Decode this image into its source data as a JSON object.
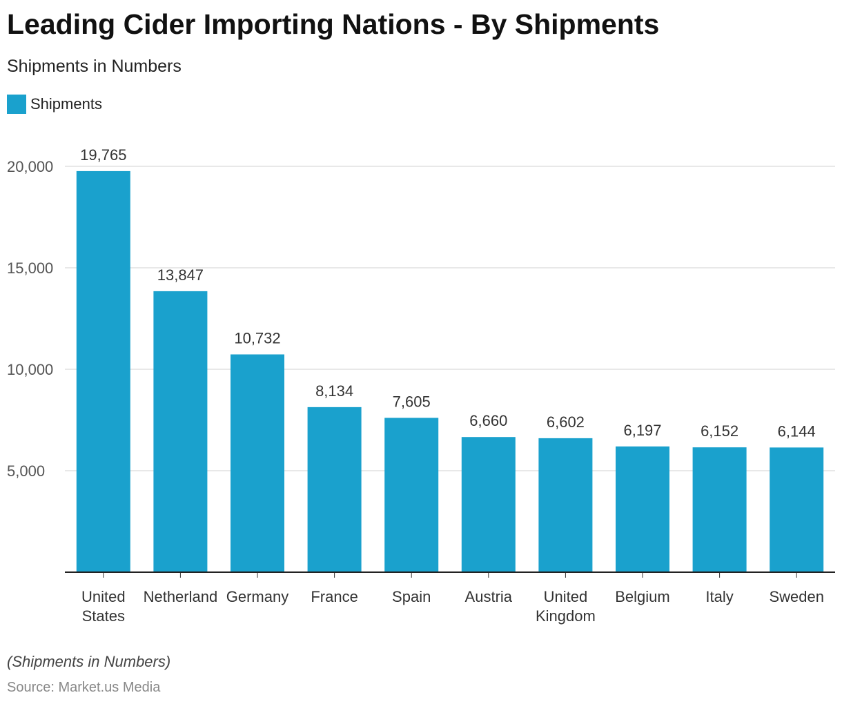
{
  "header": {
    "title": "Leading Cider Importing Nations - By Shipments",
    "subtitle": "Shipments in Numbers"
  },
  "legend": {
    "items": [
      {
        "label": "Shipments",
        "color": "#1aa1cd"
      }
    ]
  },
  "footer": {
    "note": "(Shipments in Numbers)",
    "source": "Source: Market.us Media"
  },
  "chart_data": {
    "type": "bar",
    "title": "Leading Cider Importing Nations - By Shipments",
    "subtitle": "Shipments in Numbers",
    "xlabel": "",
    "ylabel": "",
    "categories": [
      [
        "United",
        "States"
      ],
      [
        "Netherland"
      ],
      [
        "Germany"
      ],
      [
        "France"
      ],
      [
        "Spain"
      ],
      [
        "Austria"
      ],
      [
        "United",
        "Kingdom"
      ],
      [
        "Belgium"
      ],
      [
        "Italy"
      ],
      [
        "Sweden"
      ]
    ],
    "series": [
      {
        "name": "Shipments",
        "color": "#1aa1cd",
        "values": [
          19765,
          13847,
          10732,
          8134,
          7605,
          6660,
          6602,
          6197,
          6152,
          6144
        ],
        "labels": [
          "19,765",
          "13,847",
          "10,732",
          "8,134",
          "7,605",
          "6,660",
          "6,602",
          "6,197",
          "6,152",
          "6,144"
        ]
      }
    ],
    "ylim": [
      0,
      20000
    ],
    "yticks": [
      5000,
      10000,
      15000,
      20000
    ],
    "ytick_labels": [
      "5,000",
      "10,000",
      "15,000",
      "20,000"
    ],
    "grid": true,
    "legend_position": "top-left"
  }
}
